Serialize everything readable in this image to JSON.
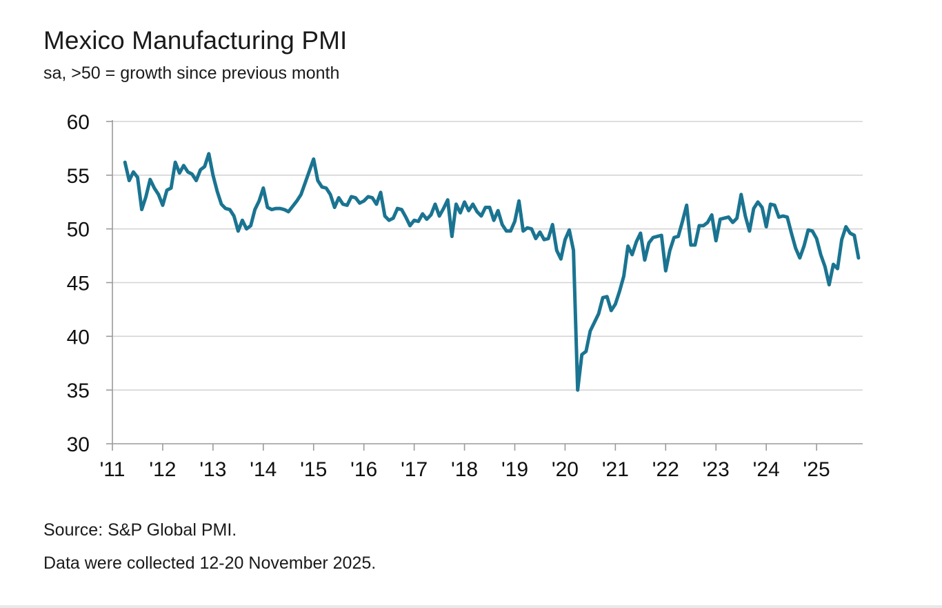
{
  "chart_data": {
    "type": "line",
    "title": "Mexico Manufacturing PMI",
    "subtitle": "sa, >50 = growth since previous month",
    "xlabel": "",
    "ylabel": "",
    "ylim": [
      30,
      60
    ],
    "yticks": [
      30,
      35,
      40,
      45,
      50,
      55,
      60
    ],
    "xlim": [
      2011.0,
      2025.917
    ],
    "xticks": [
      {
        "value": 2011,
        "label": "'11"
      },
      {
        "value": 2012,
        "label": "'12"
      },
      {
        "value": 2013,
        "label": "'13"
      },
      {
        "value": 2014,
        "label": "'14"
      },
      {
        "value": 2015,
        "label": "'15"
      },
      {
        "value": 2016,
        "label": "'16"
      },
      {
        "value": 2017,
        "label": "'17"
      },
      {
        "value": 2018,
        "label": "'18"
      },
      {
        "value": 2019,
        "label": "'19"
      },
      {
        "value": 2020,
        "label": "'20"
      },
      {
        "value": 2021,
        "label": "'21"
      },
      {
        "value": 2022,
        "label": "'22"
      },
      {
        "value": 2023,
        "label": "'23"
      },
      {
        "value": 2024,
        "label": "'24"
      },
      {
        "value": 2025,
        "label": "'25"
      }
    ],
    "grid": true,
    "series": [
      {
        "name": "Mexico Manufacturing PMI",
        "color": "#1a7491",
        "start": "2011-04",
        "values": [
          56.2,
          54.5,
          55.3,
          54.8,
          51.8,
          53.0,
          54.6,
          53.8,
          53.2,
          52.2,
          53.6,
          53.8,
          56.2,
          55.2,
          55.9,
          55.3,
          55.1,
          54.5,
          55.5,
          55.8,
          57.0,
          55.0,
          53.5,
          52.3,
          51.9,
          51.8,
          51.2,
          49.8,
          50.8,
          50.0,
          50.3,
          51.8,
          52.6,
          53.8,
          52.0,
          51.8,
          51.9,
          51.9,
          51.8,
          51.6,
          52.1,
          52.6,
          53.2,
          54.3,
          55.4,
          56.5,
          54.5,
          53.9,
          53.8,
          53.2,
          52.0,
          52.9,
          52.3,
          52.2,
          53.0,
          52.9,
          52.4,
          52.6,
          53.0,
          52.9,
          52.3,
          53.4,
          51.2,
          50.8,
          51.0,
          51.9,
          51.8,
          51.1,
          50.3,
          50.8,
          50.7,
          51.4,
          50.9,
          51.3,
          52.3,
          51.2,
          51.9,
          52.7,
          49.3,
          52.3,
          51.5,
          52.5,
          51.7,
          52.3,
          51.6,
          51.2,
          52.0,
          52.0,
          50.8,
          51.7,
          50.4,
          49.8,
          49.8,
          50.7,
          52.6,
          49.8,
          50.1,
          50.0,
          49.1,
          49.7,
          49.0,
          49.1,
          50.4,
          48.0,
          47.2,
          49.0,
          49.9,
          48.0,
          35.0,
          38.3,
          38.6,
          40.5,
          41.3,
          42.1,
          43.6,
          43.7,
          42.4,
          43.0,
          44.2,
          45.6,
          48.4,
          47.6,
          48.8,
          49.6,
          47.1,
          48.7,
          49.2,
          49.3,
          49.4,
          46.1,
          48.0,
          49.2,
          49.3,
          50.7,
          52.2,
          48.5,
          48.5,
          50.3,
          50.3,
          50.6,
          51.3,
          48.9,
          50.9,
          51.0,
          51.1,
          50.6,
          51.0,
          53.2,
          51.2,
          49.8,
          51.9,
          52.5,
          52.0,
          50.2,
          52.3,
          52.2,
          51.1,
          51.2,
          51.1,
          49.6,
          48.2,
          47.3,
          48.4,
          49.9,
          49.8,
          49.1,
          47.6,
          46.5,
          44.8,
          46.7,
          46.3,
          49.0,
          50.2,
          49.6,
          49.4,
          47.3
        ]
      }
    ]
  },
  "footer": {
    "source": "Source: S&P Global PMI.",
    "collected": "Data were collected 12-20 November 2025."
  }
}
